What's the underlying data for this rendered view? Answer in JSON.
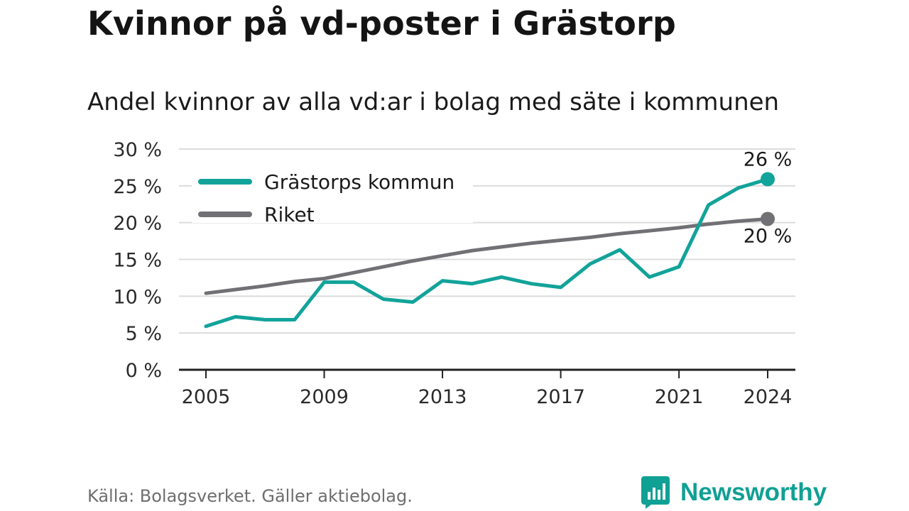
{
  "title": "Kvinnor på vd-poster i Grästorp",
  "subtitle": "Andel kvinnor av alla vd:ar i bolag med säte i kommunen",
  "source": "Källa: Bolagsverket. Gäller aktiebolag.",
  "brand": {
    "name": "Newsworthy",
    "icon": "newsworthy-logo-icon"
  },
  "colors": {
    "primary": "#12a39a",
    "secondary": "#707075",
    "grid": "#dcdcdc",
    "axis": "#222222"
  },
  "chart_data": {
    "type": "line",
    "x": [
      2005,
      2006,
      2007,
      2008,
      2009,
      2010,
      2011,
      2012,
      2013,
      2014,
      2015,
      2016,
      2017,
      2018,
      2019,
      2020,
      2021,
      2022,
      2023,
      2024
    ],
    "series": [
      {
        "name": "Grästorps kommun",
        "color": "#12a39a",
        "values": [
          5.9,
          7.2,
          6.8,
          6.8,
          11.9,
          11.9,
          9.6,
          9.2,
          12.1,
          11.7,
          12.6,
          11.7,
          11.2,
          14.4,
          16.3,
          12.6,
          14.0,
          22.4,
          24.7,
          25.9
        ]
      },
      {
        "name": "Riket",
        "color": "#707075",
        "values": [
          10.4,
          10.9,
          11.4,
          12.0,
          12.4,
          13.2,
          14.0,
          14.8,
          15.5,
          16.2,
          16.7,
          17.2,
          17.6,
          18.0,
          18.5,
          18.9,
          19.3,
          19.8,
          20.2,
          20.5
        ]
      }
    ],
    "end_labels": [
      "26 %",
      "20 %"
    ],
    "ylim": [
      0,
      30
    ],
    "y_ticks": [
      "0 %",
      "5 %",
      "10 %",
      "15 %",
      "20 %",
      "25 %",
      "30 %"
    ],
    "x_ticks": [
      "2005",
      "2009",
      "2013",
      "2017",
      "2021",
      "2024"
    ],
    "grid": true,
    "legend": "top-left"
  }
}
